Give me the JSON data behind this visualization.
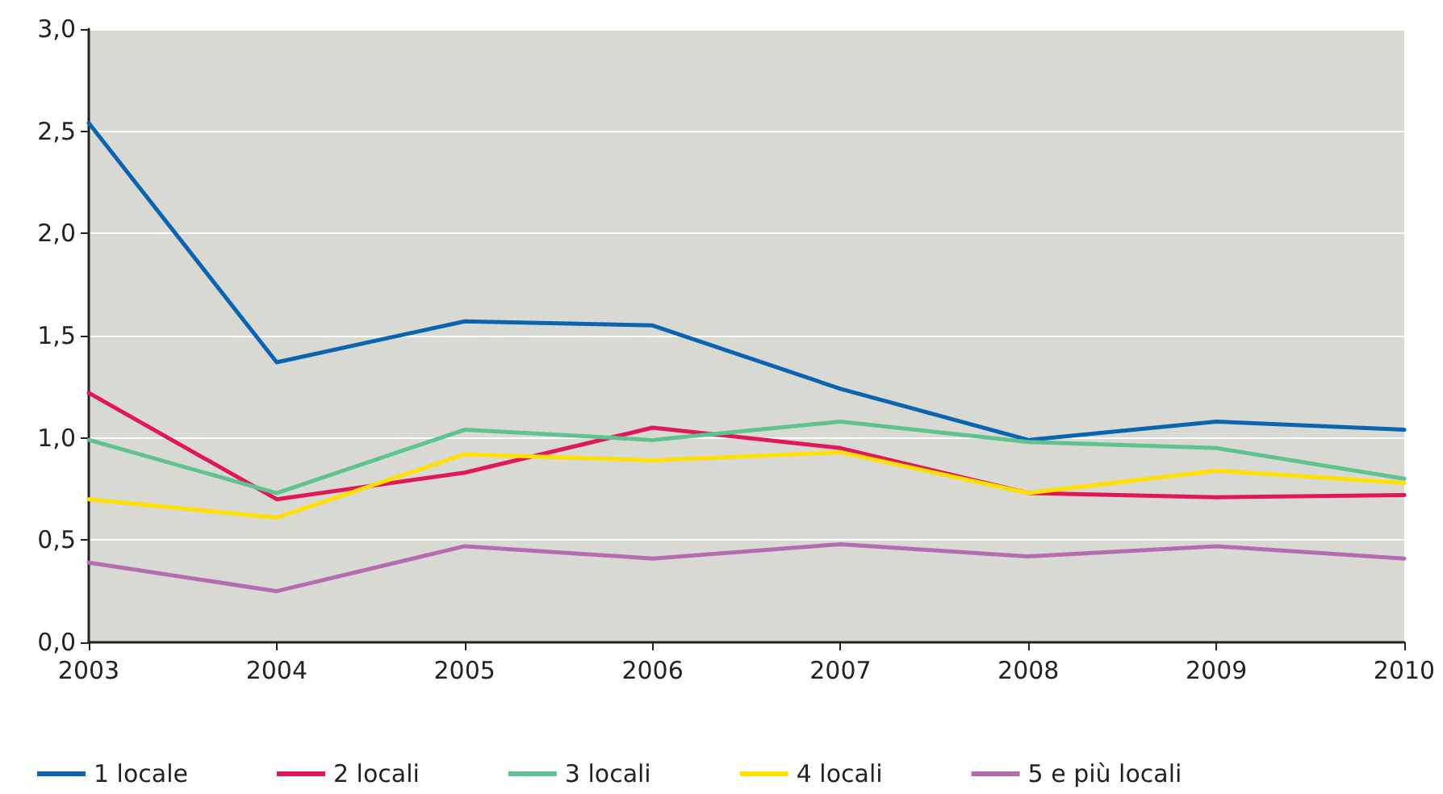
{
  "chart_data": {
    "type": "line",
    "categories": [
      "2003",
      "2004",
      "2005",
      "2006",
      "2007",
      "2008",
      "2009",
      "2010"
    ],
    "series": [
      {
        "name": "1 locale",
        "color": "#0a64b0",
        "values": [
          2.54,
          1.37,
          1.57,
          1.55,
          1.24,
          0.99,
          1.08,
          1.04
        ]
      },
      {
        "name": "2 locali",
        "color": "#e0185a",
        "values": [
          1.22,
          0.7,
          0.83,
          1.05,
          0.95,
          0.73,
          0.71,
          0.72
        ]
      },
      {
        "name": "3 locali",
        "color": "#5ec38e",
        "values": [
          0.99,
          0.73,
          1.04,
          0.99,
          1.08,
          0.98,
          0.95,
          0.8
        ]
      },
      {
        "name": "4 locali",
        "color": "#ffe000",
        "values": [
          0.7,
          0.61,
          0.92,
          0.89,
          0.93,
          0.73,
          0.84,
          0.78
        ]
      },
      {
        "name": "5 e più locali",
        "color": "#b56bb0",
        "values": [
          0.39,
          0.25,
          0.47,
          0.41,
          0.48,
          0.42,
          0.47,
          0.41
        ]
      }
    ],
    "ylim": [
      0,
      3
    ],
    "yticks": [
      {
        "value": 0,
        "label": "0,0"
      },
      {
        "value": 0.5,
        "label": "0,5"
      },
      {
        "value": 1,
        "label": "1,0"
      },
      {
        "value": 1.5,
        "label": "1,5"
      },
      {
        "value": 2,
        "label": "2,0"
      },
      {
        "value": 2.5,
        "label": "2,5"
      },
      {
        "value": 3,
        "label": "3,0"
      }
    ],
    "grid": "y",
    "legend": "bottom",
    "marker": "none",
    "line_style": "solid"
  }
}
